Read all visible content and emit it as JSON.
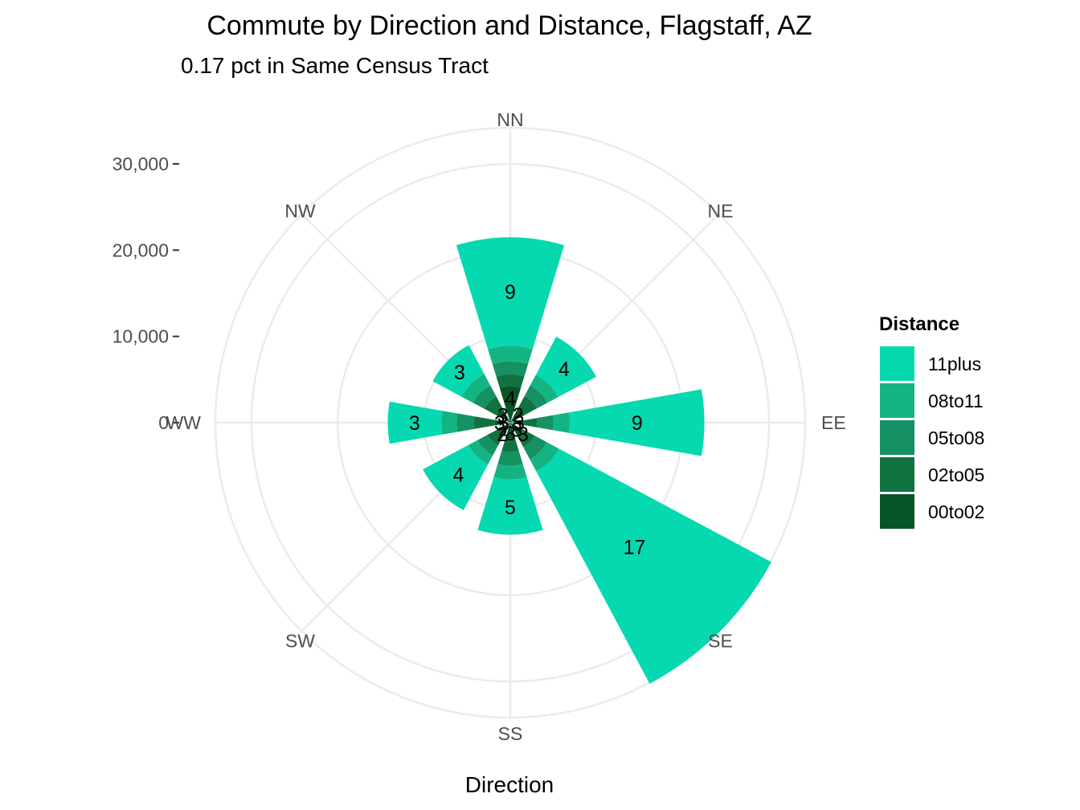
{
  "chart_data": {
    "type": "polar_stacked_bar",
    "title": "Commute by Direction and Distance, Flagstaff, AZ",
    "subtitle": "0.17 pct in Same Census Tract",
    "xlabel": "Direction",
    "ylabel": "",
    "directions": [
      "NN",
      "NE",
      "EE",
      "SE",
      "SS",
      "SW",
      "WW",
      "NW"
    ],
    "radial_ticks": [
      "0",
      "10,000",
      "20,000",
      "30,000"
    ],
    "radial_tick_values": [
      0,
      10000,
      20000,
      30000
    ],
    "rlim": [
      0,
      34000
    ],
    "legend": {
      "title": "Distance",
      "position": "right",
      "entries": [
        "11plus",
        "08to11",
        "05to08",
        "02to05",
        "00to02"
      ]
    },
    "colors": {
      "11plus": "#06d9b0",
      "08to11": "#14b482",
      "05to08": "#159163",
      "02to05": "#117240",
      "00to02": "#075426"
    },
    "bars": [
      {
        "direction": "NN",
        "angle_center": 0,
        "angle_width": 36,
        "stacks": [
          4200,
          5600,
          7100,
          8900,
          21500
        ],
        "inner_label": "4",
        "outer_label": "9"
      },
      {
        "direction": "NE",
        "angle_center": 45,
        "angle_width": 36,
        "stacks": [
          1900,
          3500,
          4900,
          6300,
          11300
        ],
        "inner_label": "2",
        "outer_label": "4"
      },
      {
        "direction": "EE",
        "angle_center": 90,
        "angle_width": 22,
        "stacks": [
          1500,
          3100,
          5000,
          6900,
          22500
        ],
        "inner_label": "3",
        "outer_label": "9"
      },
      {
        "direction": "SE",
        "angle_center": 135,
        "angle_width": 36,
        "stacks": [
          1600,
          3200,
          4800,
          6400,
          34300
        ],
        "inner_label": "3",
        "outer_label": "17"
      },
      {
        "direction": "SS",
        "angle_center": 180,
        "angle_width": 36,
        "stacks": [
          1800,
          3400,
          5000,
          6600,
          13000
        ],
        "inner_label": "3",
        "outer_label": "5"
      },
      {
        "direction": "SW",
        "angle_center": 225,
        "angle_width": 36,
        "stacks": [
          1500,
          3000,
          4300,
          5500,
          11500
        ],
        "inner_label": "2",
        "outer_label": "4"
      },
      {
        "direction": "WW",
        "angle_center": 270,
        "angle_width": 22,
        "stacks": [
          1800,
          4200,
          6200,
          8000,
          14200
        ],
        "inner_label": "3",
        "outer_label": "3"
      },
      {
        "direction": "NW",
        "angle_center": 315,
        "angle_width": 36,
        "stacks": [
          1800,
          3400,
          4900,
          6400,
          10200
        ],
        "inner_label": "3",
        "outer_label": "3"
      }
    ],
    "extra_labels": [
      "2",
      "3"
    ]
  }
}
